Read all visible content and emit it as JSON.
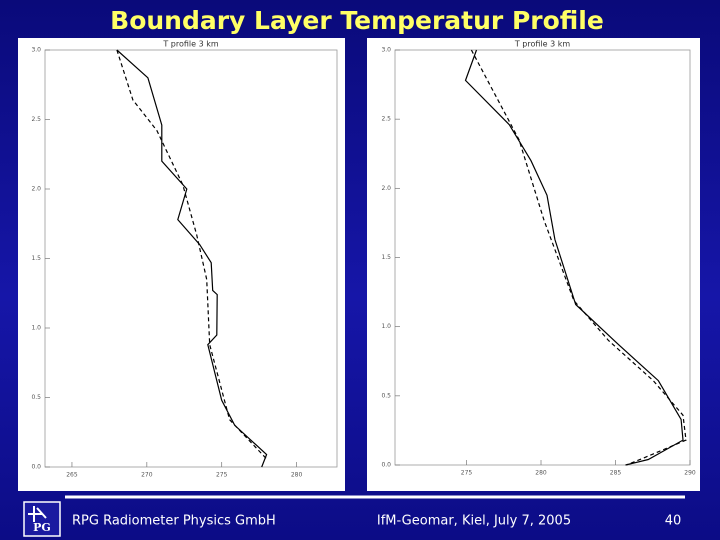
{
  "title": "Boundary Layer Temperatur Profile",
  "footer": {
    "company": "RPG Radiometer Physics GmbH",
    "event": "IfM-Geomar, Kiel, July 7, 2005",
    "page": "40"
  },
  "logo_text": "PG",
  "chart_data": [
    {
      "type": "line",
      "title": "T profile 3 km",
      "xlim": [
        263.2,
        282.7
      ],
      "xticks": [
        265,
        270,
        275,
        280
      ],
      "ylim": [
        0,
        3
      ],
      "yticks": [
        {
          "value": 0,
          "label": "0.0"
        },
        0.5,
        {
          "value": 1,
          "label": "1.0"
        },
        1.5,
        {
          "value": 2,
          "label": "2.0"
        },
        2.5,
        {
          "value": 3,
          "label": "3.0"
        }
      ],
      "series": [
        {
          "color": "#000000",
          "dash": false,
          "x": [
            268.0,
            270.07,
            271.0,
            271.0,
            272.67,
            272.07,
            273.53,
            274.3,
            274.4,
            274.7,
            274.67,
            274.07,
            275.0,
            275.87,
            278.0,
            277.67
          ],
          "values": [
            3.0,
            2.8,
            2.46,
            2.2,
            2.0,
            1.78,
            1.6,
            1.47,
            1.27,
            1.24,
            0.95,
            0.88,
            0.48,
            0.3,
            0.09,
            0.0
          ]
        },
        {
          "color": "#000000",
          "dash": true,
          "x": [
            268.0,
            269.07,
            270.67,
            272.4,
            273.33,
            274.0,
            274.2,
            275.53,
            278.07
          ],
          "values": [
            3.0,
            2.64,
            2.42,
            2.03,
            1.67,
            1.35,
            0.88,
            0.34,
            0.05
          ]
        }
      ]
    },
    {
      "type": "line",
      "title": "T profile 3 km",
      "xlim": [
        270.2,
        290
      ],
      "xticks": [
        275,
        280,
        285,
        290
      ],
      "ylim": [
        0,
        3
      ],
      "yticks": [
        {
          "value": 0,
          "label": "0.0"
        },
        0.5,
        {
          "value": 1,
          "label": "1.0"
        },
        1.5,
        {
          "value": 2,
          "label": "2.0"
        },
        2.5,
        {
          "value": 3,
          "label": "3.0"
        }
      ],
      "series": [
        {
          "color": "#000000",
          "dash": false,
          "x": [
            275.67,
            274.93,
            277.87,
            279.33,
            280.4,
            280.93,
            282.33,
            285.2,
            287.87,
            289.4,
            289.53,
            287.2,
            285.67
          ],
          "values": [
            3.0,
            2.78,
            2.46,
            2.2,
            1.95,
            1.63,
            1.16,
            0.87,
            0.61,
            0.33,
            0.18,
            0.04,
            0.0
          ]
        },
        {
          "color": "#000000",
          "dash": true,
          "x": [
            275.33,
            278.53,
            280.2,
            282.2,
            284.53,
            287.53,
            289.53,
            289.73,
            286.87,
            285.73
          ],
          "values": [
            3.0,
            2.35,
            1.77,
            1.19,
            0.9,
            0.61,
            0.36,
            0.18,
            0.05,
            0.0
          ]
        }
      ]
    }
  ]
}
